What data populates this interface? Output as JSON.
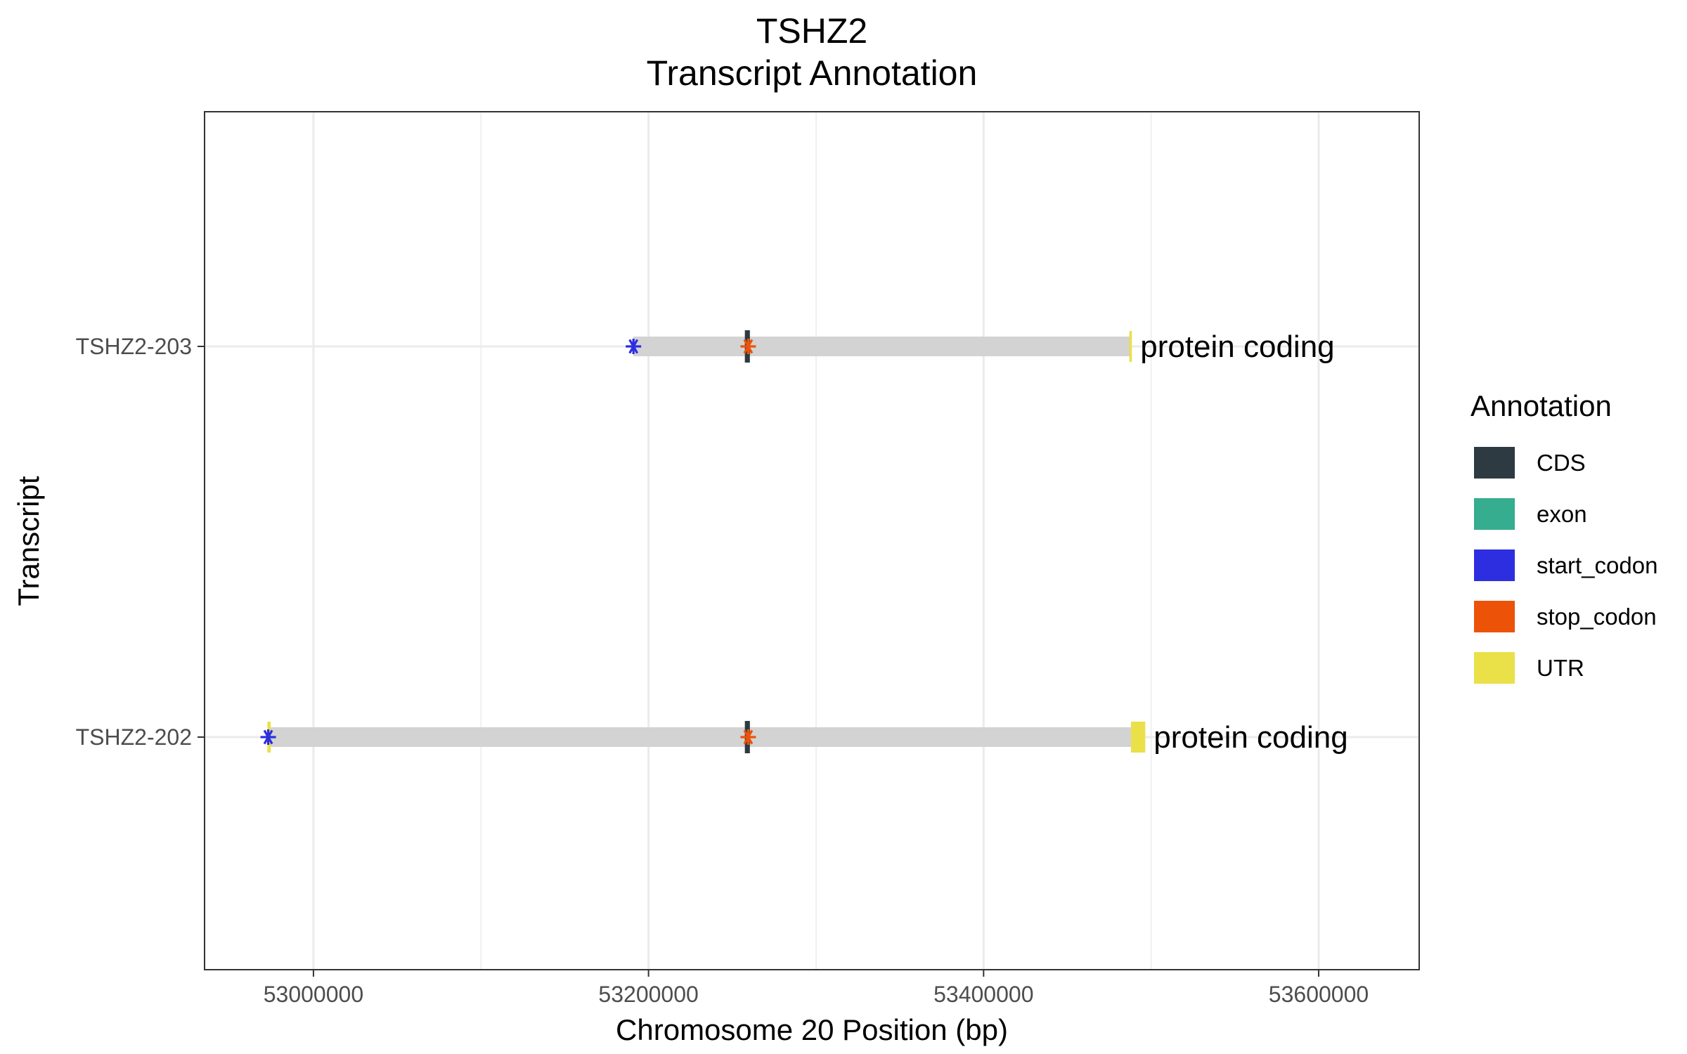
{
  "chart_data": {
    "type": "gene-track",
    "title": "TSHZ2",
    "subtitle": "Transcript Annotation",
    "xlabel": "Chromosome 20 Position (bp)",
    "ylabel": "Transcript",
    "xlim": [
      52935000,
      53660000
    ],
    "x_ticks": [
      53000000,
      53200000,
      53400000,
      53600000
    ],
    "x_tick_labels": [
      "53000000",
      "53200000",
      "53400000",
      "53600000"
    ],
    "grid": true,
    "grid_minor_x": [
      53100000,
      53300000,
      53500000
    ],
    "legend_position": "right",
    "legend_title": "Annotation",
    "legend": [
      {
        "label": "CDS",
        "color": "#2d3a42"
      },
      {
        "label": "exon",
        "color": "#35ad8e"
      },
      {
        "label": "start_codon",
        "color": "#2d2ee0"
      },
      {
        "label": "stop_codon",
        "color": "#ec5308"
      },
      {
        "label": "UTR",
        "color": "#eae048"
      }
    ],
    "intron_color": "#d3d3d3",
    "transcripts": [
      {
        "name": "TSHZ2-203",
        "biotype": "protein coding",
        "start": 53191000,
        "end": 53488000,
        "features": [
          {
            "type": "CDS",
            "start": 53257500,
            "end": 53260500
          },
          {
            "type": "UTR",
            "start": 53487000,
            "end": 53488500
          }
        ],
        "start_codon": 53191000,
        "stop_codon": 53259500
      },
      {
        "name": "TSHZ2-202",
        "biotype": "protein coding",
        "start": 52973000,
        "end": 53496000,
        "features": [
          {
            "type": "UTR",
            "start": 52972500,
            "end": 52974500
          },
          {
            "type": "CDS",
            "start": 53257500,
            "end": 53260500
          },
          {
            "type": "UTR",
            "start": 53488000,
            "end": 53496500
          }
        ],
        "start_codon": 52973000,
        "stop_codon": 53259500
      }
    ]
  }
}
